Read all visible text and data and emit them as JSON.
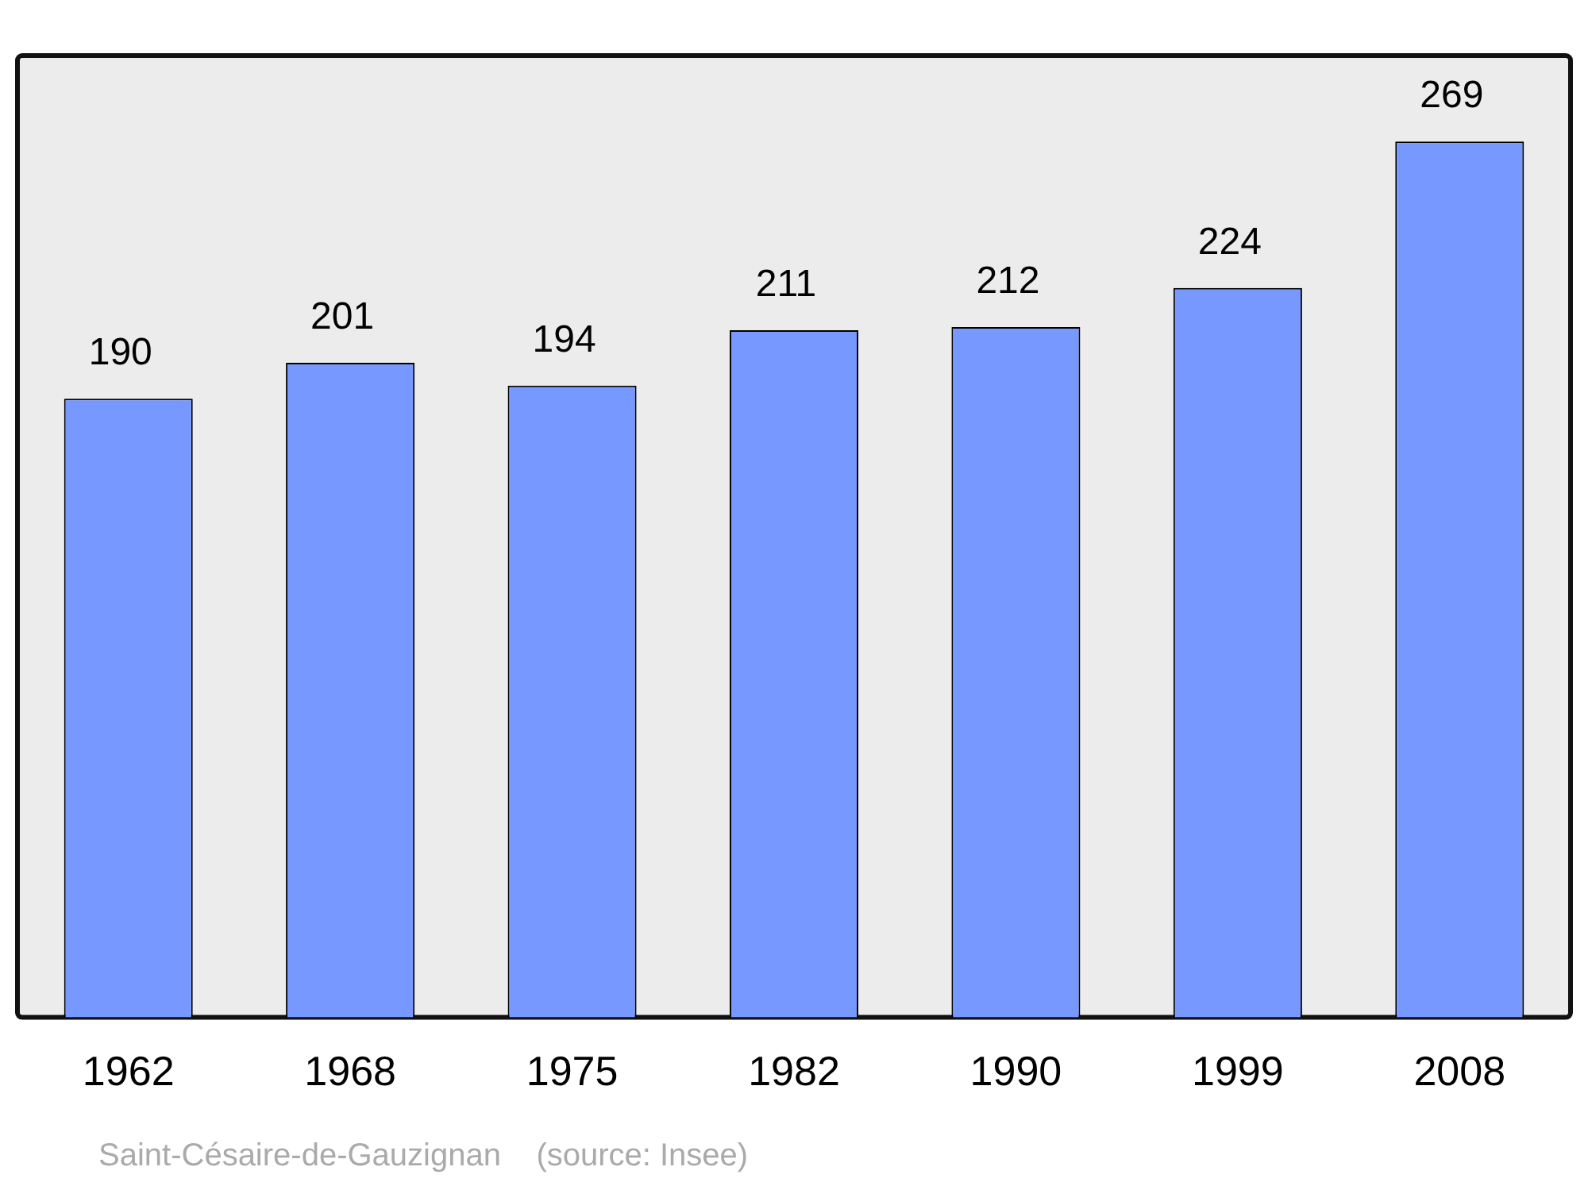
{
  "chart_data": {
    "type": "bar",
    "categories": [
      "1962",
      "1968",
      "1975",
      "1982",
      "1990",
      "1999",
      "2008"
    ],
    "values": [
      190,
      201,
      194,
      211,
      212,
      224,
      269
    ],
    "color": "#7799ff",
    "data_labels": true,
    "grid": false,
    "legend": false,
    "annotations": [
      "Saint-Césaire-de-Gauzignan    (source: Insee)"
    ]
  }
}
